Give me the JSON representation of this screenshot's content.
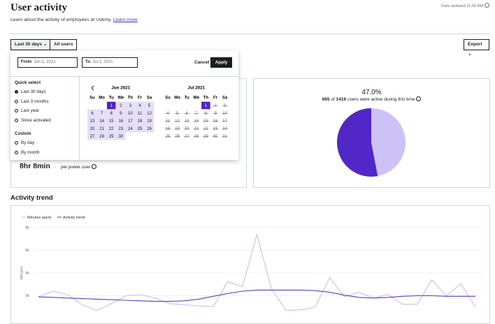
{
  "header": {
    "title": "User activity",
    "updated": "Data updated 11:00 AM",
    "description": "Learn about the activity of employees at Udemy.",
    "learn_more": "Learn more"
  },
  "toolbar": {
    "range": "Last 30 days",
    "users": "All users",
    "export": "Export"
  },
  "date_picker": {
    "from_label": "From",
    "from_value": "Jun 1, 2021",
    "to_label": "To",
    "to_value": "Jul 1, 2021",
    "cancel": "Cancel",
    "apply": "Apply",
    "quick_select_title": "Quick select",
    "quick_select": [
      "Last 30 days",
      "Last 3 months",
      "Last year",
      "Since activated"
    ],
    "quick_select_selected": 0,
    "custom_title": "Custom",
    "custom": [
      "By day",
      "By month"
    ],
    "weekdays": [
      "Su",
      "Mo",
      "Tu",
      "We",
      "Th",
      "Fr",
      "Sa"
    ],
    "months": [
      {
        "title": "Jun 2021",
        "selected": 1,
        "others": "range",
        "days": [
          null,
          null,
          1,
          2,
          3,
          4,
          5,
          6,
          7,
          8,
          9,
          10,
          11,
          12,
          13,
          14,
          15,
          16,
          17,
          18,
          19,
          20,
          21,
          22,
          23,
          24,
          25,
          26,
          27,
          28,
          29,
          30
        ]
      },
      {
        "title": "Jul 2021",
        "selected": 1,
        "others": "disabled",
        "days": [
          null,
          null,
          null,
          null,
          1,
          2,
          3,
          4,
          5,
          6,
          7,
          8,
          9,
          10,
          11,
          12,
          13,
          14,
          15,
          16,
          17,
          18,
          19,
          20,
          21,
          22,
          23,
          24,
          25,
          26,
          27,
          28,
          29,
          30,
          31
        ]
      }
    ]
  },
  "usage_card": {
    "value": "8hr 8min",
    "caption": "per power user"
  },
  "active_card": {
    "percent": "47.0%",
    "active": 665,
    "of": "of",
    "total": 1416,
    "caption": "users were active during this time",
    "active_color": "#cdc2f5",
    "inactive_color": "#5226c7"
  },
  "section_title": "Activity trend",
  "chart_data": {
    "type": "line",
    "ylabel": "Minutes",
    "ylim": [
      0,
      8000
    ],
    "yticks": [
      {
        "value": 2000,
        "label": "2k"
      },
      {
        "value": 4000,
        "label": "4k"
      },
      {
        "value": 6000,
        "label": "6k"
      },
      {
        "value": 8000,
        "label": "8k"
      }
    ],
    "grid": true,
    "legend": "top-left",
    "series": [
      {
        "name": "Minutes spent",
        "color": "#c9bdf3",
        "values": [
          1900,
          2400,
          2100,
          1200,
          700,
          1300,
          2000,
          2100,
          1800,
          1300,
          1200,
          1100,
          1050,
          3250,
          2800,
          7400,
          2600,
          700,
          750,
          1000,
          3600,
          1900,
          2300,
          1800,
          2100,
          1250,
          1250,
          3400,
          2000,
          3050,
          1000
        ]
      },
      {
        "name": "Activity trend",
        "color": "#5b3cc4",
        "values": [
          1900,
          1850,
          1800,
          1750,
          1700,
          1650,
          1600,
          1550,
          1500,
          1500,
          1550,
          1700,
          1950,
          2200,
          2400,
          2500,
          2500,
          2500,
          2500,
          2450,
          2300,
          2050,
          1850,
          1800,
          1850,
          1950,
          2000,
          2000,
          1950,
          1950,
          1950
        ]
      }
    ]
  }
}
